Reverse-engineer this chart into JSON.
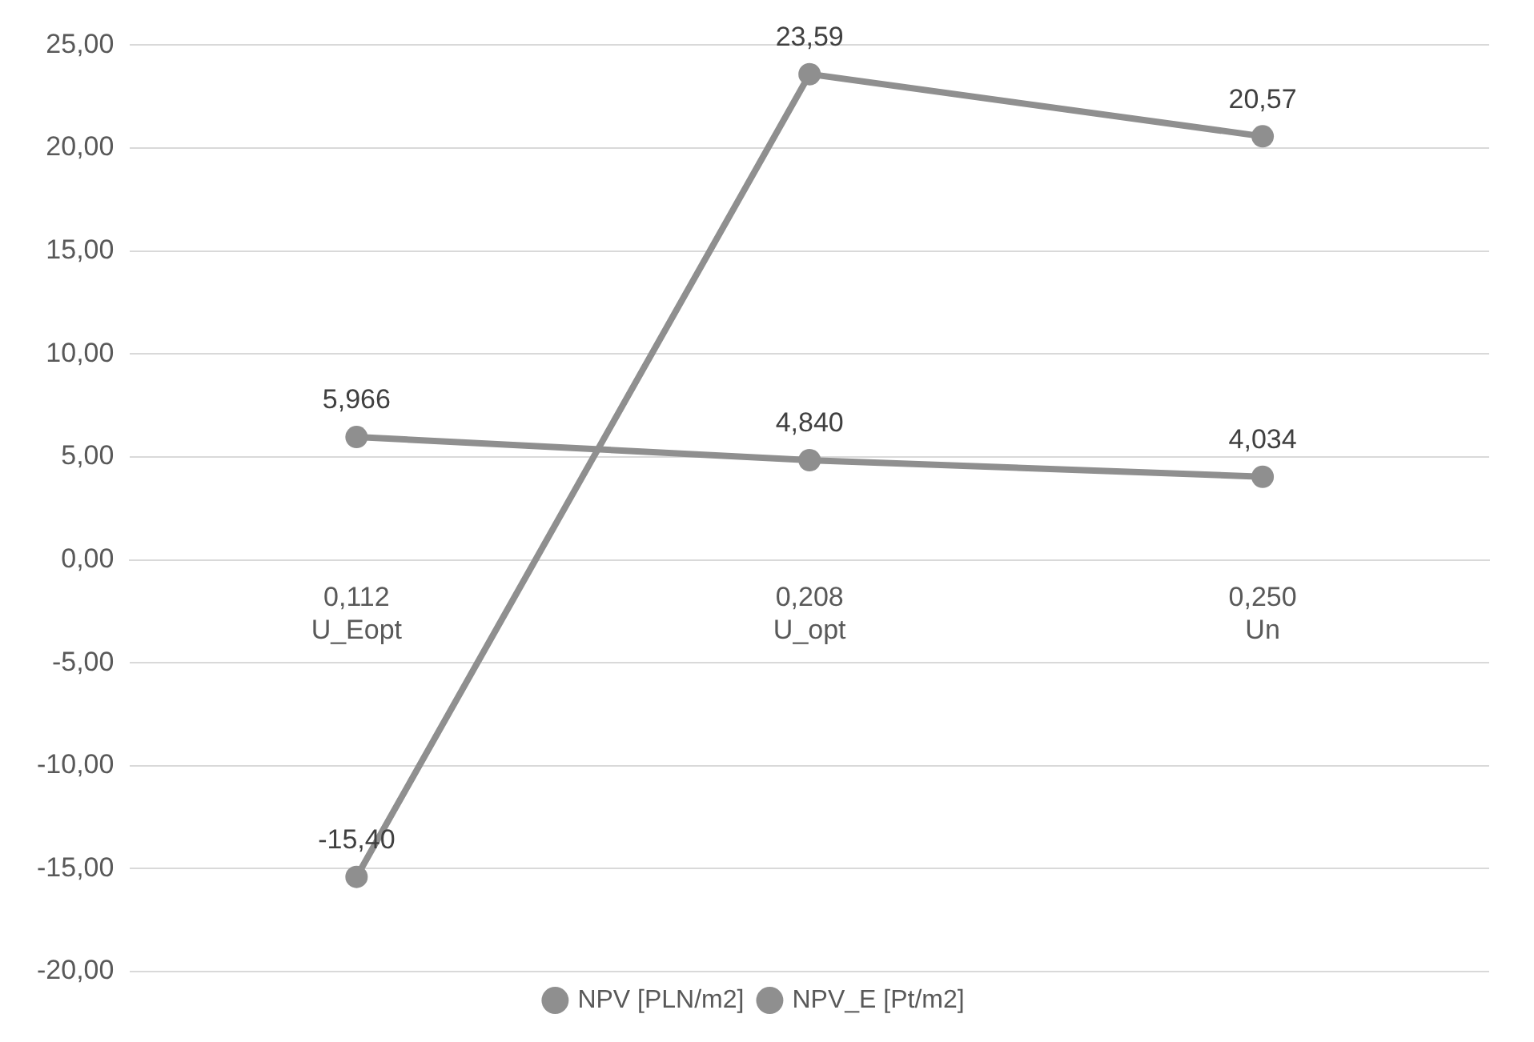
{
  "chart_data": {
    "type": "line",
    "categories": [
      "0,112\nU_Eopt",
      "0,208\nU_opt",
      "0,250\nUn"
    ],
    "series": [
      {
        "name": "NPV [PLN/m2]",
        "color": "#8f8f8f",
        "values": [
          -15.4,
          23.59,
          20.57
        ],
        "value_labels": [
          "-15,40",
          "23,59",
          "20,57"
        ]
      },
      {
        "name": "NPV_E [Pt/m2]",
        "color": "#8f8f8f",
        "values": [
          5.966,
          4.84,
          4.034
        ],
        "value_labels": [
          "5,966",
          "4,840",
          "4,034"
        ]
      }
    ],
    "ylim": [
      -20,
      25
    ],
    "yticks": [
      {
        "value": -20,
        "label": "-20,00"
      },
      {
        "value": -15,
        "label": "-15,00"
      },
      {
        "value": -10,
        "label": "-10,00"
      },
      {
        "value": -5,
        "label": "-5,00"
      },
      {
        "value": 0,
        "label": "0,00"
      },
      {
        "value": 5,
        "label": "5,00"
      },
      {
        "value": 10,
        "label": "10,00"
      },
      {
        "value": 15,
        "label": "15,00"
      },
      {
        "value": 20,
        "label": "20,00"
      },
      {
        "value": 25,
        "label": "25,00"
      }
    ],
    "grid": "y",
    "legend": "bottom",
    "marker": "circle",
    "line_style": "solid"
  }
}
